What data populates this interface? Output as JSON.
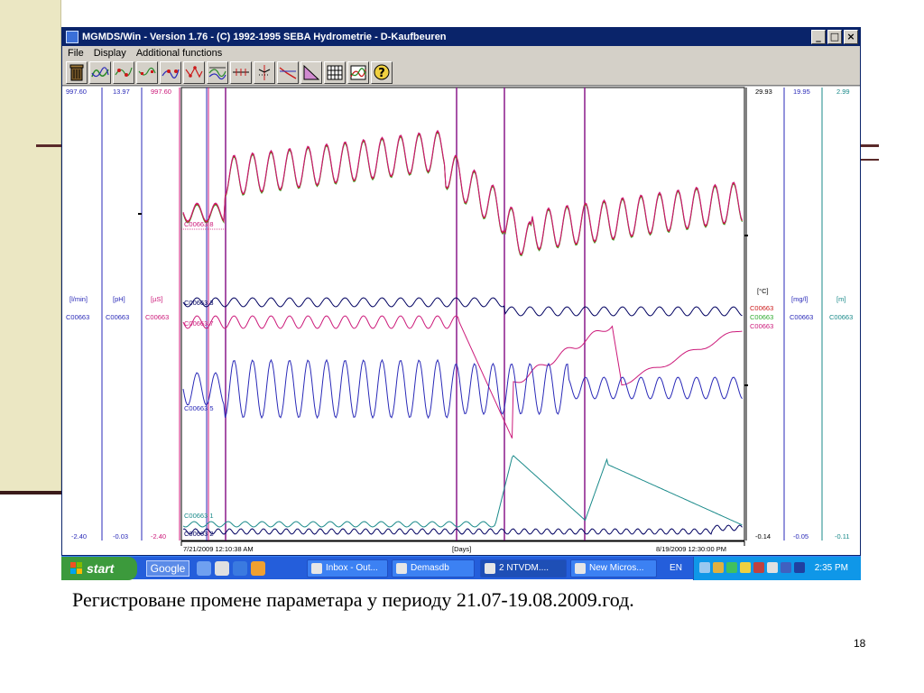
{
  "window": {
    "title": "MGMDS/Win - Version 1.76 - (C) 1992-1995 SEBA Hydrometrie - D-Kaufbeuren",
    "controls": [
      "_",
      "□",
      "×"
    ]
  },
  "menu": [
    "File",
    "Display",
    "Additional functions"
  ],
  "toolbar": {
    "icons": [
      "trash-icon",
      "curve-icon",
      "curve-points-icon",
      "curve-points-icon",
      "curve-points-icon",
      "curve-points-icon",
      "curve-overlay-icon",
      "curve-markers-icon",
      "markers-icon",
      "line-markers-icon",
      "triangle-icon",
      "grid-icon",
      "chart-icon",
      "help-icon"
    ]
  },
  "plot": {
    "left_axes": [
      {
        "top": "997.60",
        "bottom": "-2.40",
        "unit": "[l/min]",
        "channel": "C00663",
        "color": "#2a2ab8"
      },
      {
        "top": "13.97",
        "bottom": "-0.03",
        "unit": "[pH]",
        "channel": "C00663",
        "color": "#2a2ab8"
      },
      {
        "top": "997.60",
        "bottom": "-2.40",
        "unit": "[µS]",
        "channel": "C00663",
        "color": "#cc1a7a"
      }
    ],
    "right_axes": [
      {
        "top": "29.93",
        "bottom": "-0.14",
        "unit": "[°C]",
        "channels": [
          "C00663",
          "C00663",
          "C00663"
        ],
        "channel_colors": [
          "#cc1a1a",
          "#2faa2f",
          "#cc1a7a"
        ],
        "color": "#000000"
      },
      {
        "top": "19.95",
        "bottom": "-0.05",
        "unit": "[mg/l]",
        "channel": "C00663",
        "color": "#2a2ab8"
      },
      {
        "top": "2.99",
        "bottom": "-0.11",
        "unit": "[m]",
        "channel": "C00663",
        "color": "#1a8a8a"
      }
    ],
    "trace_labels": [
      {
        "label": "C00663 8",
        "color": "#cc1a7a"
      },
      {
        "label": "C00663 3",
        "color": "#000060"
      },
      {
        "label": "C00663 7",
        "color": "#cc1a7a"
      },
      {
        "label": "C00663 5",
        "color": "#2a2ab8"
      },
      {
        "label": "C00663 1",
        "color": "#1a8a8a"
      },
      {
        "label": "C00663 2",
        "color": "#000060"
      }
    ],
    "x_start": "7/21/2009 12:10:38 AM",
    "x_end": "8/19/2009 12:30:00 PM",
    "x_unit": "[Days]"
  },
  "taskbar": {
    "start": "start",
    "search": "Google",
    "items": [
      "Inbox - Out...",
      "Demasdb",
      "2 NTVDM....",
      "New Micros..."
    ],
    "language": "EN",
    "time": "2:35 PM"
  },
  "caption": "Регистроване промене параметара у периоду 21.07-19.08.2009.год.",
  "slide_number": "18"
}
